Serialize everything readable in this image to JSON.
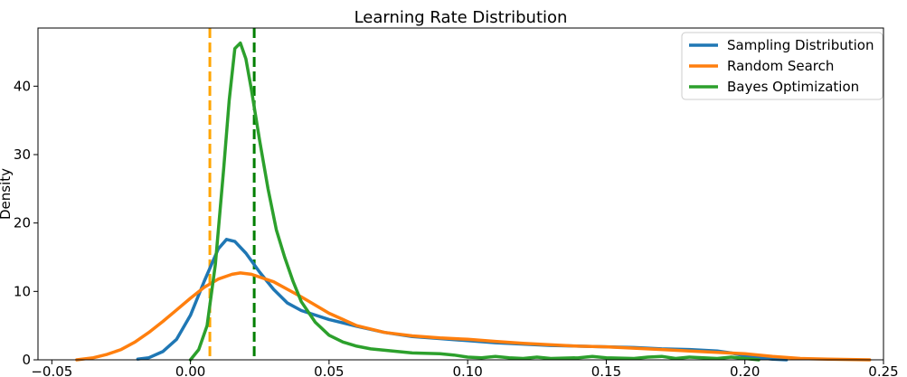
{
  "chart_data": {
    "type": "line",
    "title": "Learning Rate Distribution",
    "xlabel": "",
    "ylabel": "Density",
    "xlim": [
      -0.055,
      0.25
    ],
    "ylim": [
      0,
      48.5
    ],
    "grid": false,
    "legend_position": "top-right",
    "xticks": [
      {
        "value": -0.05,
        "label": "−0.05"
      },
      {
        "value": 0.0,
        "label": "0.00"
      },
      {
        "value": 0.05,
        "label": "0.05"
      },
      {
        "value": 0.1,
        "label": "0.10"
      },
      {
        "value": 0.15,
        "label": "0.15"
      },
      {
        "value": 0.2,
        "label": "0.20"
      },
      {
        "value": 0.25,
        "label": "0.25"
      }
    ],
    "yticks": [
      {
        "value": 0,
        "label": "0"
      },
      {
        "value": 10,
        "label": "10"
      },
      {
        "value": 20,
        "label": "20"
      },
      {
        "value": 30,
        "label": "30"
      },
      {
        "value": 40,
        "label": "40"
      }
    ],
    "series": [
      {
        "name": "Sampling Distribution",
        "color": "#1f77b4",
        "points": [
          [
            -0.019,
            0.1
          ],
          [
            -0.015,
            0.3
          ],
          [
            -0.01,
            1.2
          ],
          [
            -0.005,
            3.0
          ],
          [
            0.0,
            6.5
          ],
          [
            0.005,
            11.5
          ],
          [
            0.01,
            16.2
          ],
          [
            0.013,
            17.6
          ],
          [
            0.016,
            17.3
          ],
          [
            0.02,
            15.6
          ],
          [
            0.025,
            12.8
          ],
          [
            0.03,
            10.3
          ],
          [
            0.035,
            8.3
          ],
          [
            0.04,
            7.2
          ],
          [
            0.05,
            5.9
          ],
          [
            0.06,
            4.9
          ],
          [
            0.07,
            4.0
          ],
          [
            0.08,
            3.4
          ],
          [
            0.09,
            3.1
          ],
          [
            0.1,
            2.8
          ],
          [
            0.11,
            2.5
          ],
          [
            0.12,
            2.3
          ],
          [
            0.13,
            2.1
          ],
          [
            0.14,
            2.0
          ],
          [
            0.15,
            1.9
          ],
          [
            0.16,
            1.8
          ],
          [
            0.17,
            1.6
          ],
          [
            0.18,
            1.5
          ],
          [
            0.19,
            1.3
          ],
          [
            0.195,
            1.0
          ],
          [
            0.2,
            0.6
          ],
          [
            0.205,
            0.3
          ],
          [
            0.21,
            0.1
          ],
          [
            0.215,
            0.0
          ]
        ]
      },
      {
        "name": "Random Search",
        "color": "#ff7f0e",
        "points": [
          [
            -0.041,
            0.0
          ],
          [
            -0.035,
            0.3
          ],
          [
            -0.03,
            0.8
          ],
          [
            -0.025,
            1.5
          ],
          [
            -0.02,
            2.6
          ],
          [
            -0.015,
            4.0
          ],
          [
            -0.01,
            5.6
          ],
          [
            -0.005,
            7.3
          ],
          [
            0.0,
            9.0
          ],
          [
            0.005,
            10.6
          ],
          [
            0.01,
            11.8
          ],
          [
            0.015,
            12.5
          ],
          [
            0.018,
            12.7
          ],
          [
            0.022,
            12.5
          ],
          [
            0.03,
            11.4
          ],
          [
            0.04,
            9.2
          ],
          [
            0.05,
            6.8
          ],
          [
            0.06,
            5.0
          ],
          [
            0.07,
            4.0
          ],
          [
            0.08,
            3.5
          ],
          [
            0.09,
            3.2
          ],
          [
            0.1,
            3.0
          ],
          [
            0.11,
            2.7
          ],
          [
            0.12,
            2.4
          ],
          [
            0.13,
            2.2
          ],
          [
            0.14,
            2.0
          ],
          [
            0.15,
            1.9
          ],
          [
            0.16,
            1.7
          ],
          [
            0.17,
            1.5
          ],
          [
            0.18,
            1.3
          ],
          [
            0.19,
            1.1
          ],
          [
            0.2,
            0.9
          ],
          [
            0.21,
            0.5
          ],
          [
            0.22,
            0.2
          ],
          [
            0.23,
            0.1
          ],
          [
            0.245,
            0.0
          ]
        ]
      },
      {
        "name": "Bayes Optimization",
        "color": "#2ca02c",
        "points": [
          [
            0.0,
            0.0
          ],
          [
            0.003,
            1.5
          ],
          [
            0.006,
            5.0
          ],
          [
            0.009,
            14.0
          ],
          [
            0.012,
            28.0
          ],
          [
            0.014,
            38.0
          ],
          [
            0.016,
            45.5
          ],
          [
            0.018,
            46.3
          ],
          [
            0.02,
            44.0
          ],
          [
            0.022,
            39.5
          ],
          [
            0.025,
            32.0
          ],
          [
            0.028,
            25.0
          ],
          [
            0.031,
            19.0
          ],
          [
            0.034,
            15.0
          ],
          [
            0.037,
            11.5
          ],
          [
            0.04,
            8.5
          ],
          [
            0.045,
            5.5
          ],
          [
            0.05,
            3.6
          ],
          [
            0.055,
            2.6
          ],
          [
            0.06,
            2.0
          ],
          [
            0.065,
            1.6
          ],
          [
            0.07,
            1.4
          ],
          [
            0.075,
            1.2
          ],
          [
            0.08,
            1.0
          ],
          [
            0.09,
            0.9
          ],
          [
            0.095,
            0.7
          ],
          [
            0.1,
            0.4
          ],
          [
            0.105,
            0.3
          ],
          [
            0.11,
            0.5
          ],
          [
            0.115,
            0.3
          ],
          [
            0.12,
            0.2
          ],
          [
            0.125,
            0.4
          ],
          [
            0.13,
            0.2
          ],
          [
            0.14,
            0.3
          ],
          [
            0.145,
            0.5
          ],
          [
            0.15,
            0.3
          ],
          [
            0.16,
            0.2
          ],
          [
            0.165,
            0.4
          ],
          [
            0.17,
            0.5
          ],
          [
            0.175,
            0.2
          ],
          [
            0.18,
            0.4
          ],
          [
            0.185,
            0.3
          ],
          [
            0.19,
            0.2
          ],
          [
            0.195,
            0.4
          ],
          [
            0.2,
            0.2
          ],
          [
            0.205,
            0.0
          ]
        ]
      }
    ],
    "vlines": [
      {
        "x": 0.007,
        "color": "#ffa500",
        "style": "dashed"
      },
      {
        "x": 0.023,
        "color": "#007f00",
        "style": "dashed"
      }
    ]
  }
}
